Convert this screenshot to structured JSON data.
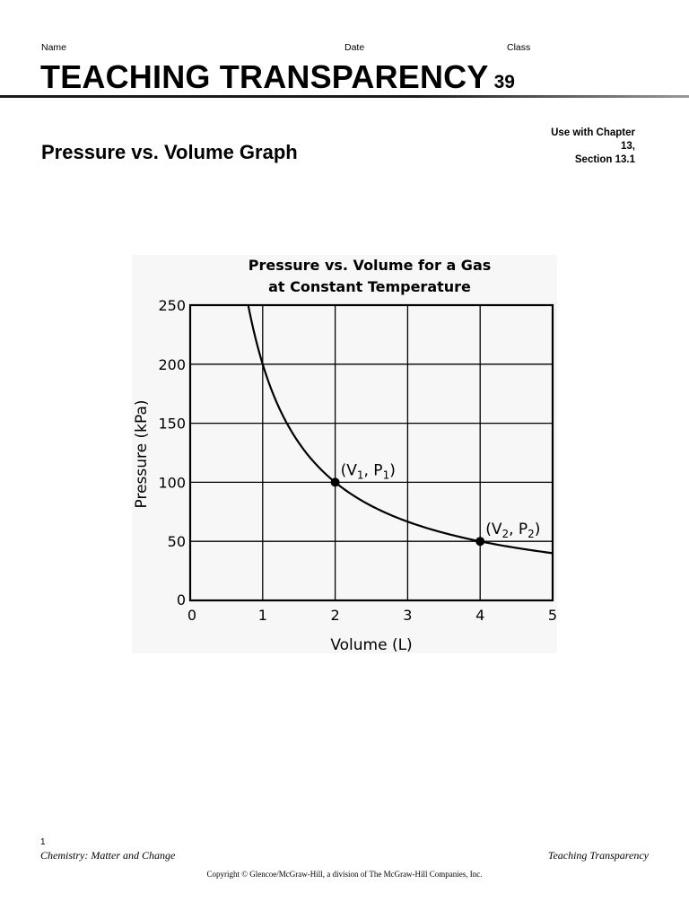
{
  "header": {
    "name_label": "Name",
    "date_label": "Date",
    "class_label": "Class",
    "title": "TEACHING TRANSPARENCY",
    "number": "39"
  },
  "subtitle": "Pressure vs. Volume Graph",
  "chapter_note": {
    "line1": "Use with Chapter",
    "line2": "13,",
    "line3": "Section 13.1"
  },
  "chart_data": {
    "type": "line",
    "title_line1": "Pressure vs. Volume for a Gas",
    "title_line2": "at Constant Temperature",
    "xlabel": "Volume (L)",
    "ylabel": "Pressure (kPa)",
    "xlim": [
      0,
      5
    ],
    "ylim": [
      0,
      250
    ],
    "x_ticks": [
      0,
      1,
      2,
      3,
      4,
      5
    ],
    "y_ticks": [
      0,
      50,
      100,
      150,
      200,
      250
    ],
    "grid": true,
    "series": [
      {
        "relation": "P = 200 / V",
        "x": [
          0.8,
          0.9,
          1.0,
          1.25,
          1.5,
          1.75,
          2.0,
          2.5,
          3.0,
          3.5,
          4.0,
          4.5,
          5.0
        ],
        "y": [
          250,
          222.2,
          200,
          160,
          133.3,
          114.3,
          100,
          80,
          66.7,
          57.1,
          50,
          44.4,
          40
        ]
      }
    ],
    "points": [
      {
        "x": 2,
        "y": 100,
        "label_pre": "(V",
        "sub1": "1",
        "label_mid": ", P",
        "sub2": "1",
        "label_post": ")"
      },
      {
        "x": 4,
        "y": 50,
        "label_pre": "(V",
        "sub1": "2",
        "label_mid": ", P",
        "sub2": "2",
        "label_post": ")"
      }
    ]
  },
  "footer": {
    "page_number": "1",
    "book_title": "Chemistry: Matter and Change",
    "section_name": "Teaching Transparency",
    "copyright": "Copyright © Glencoe/McGraw-Hill, a division of The McGraw-Hill Companies, Inc."
  }
}
